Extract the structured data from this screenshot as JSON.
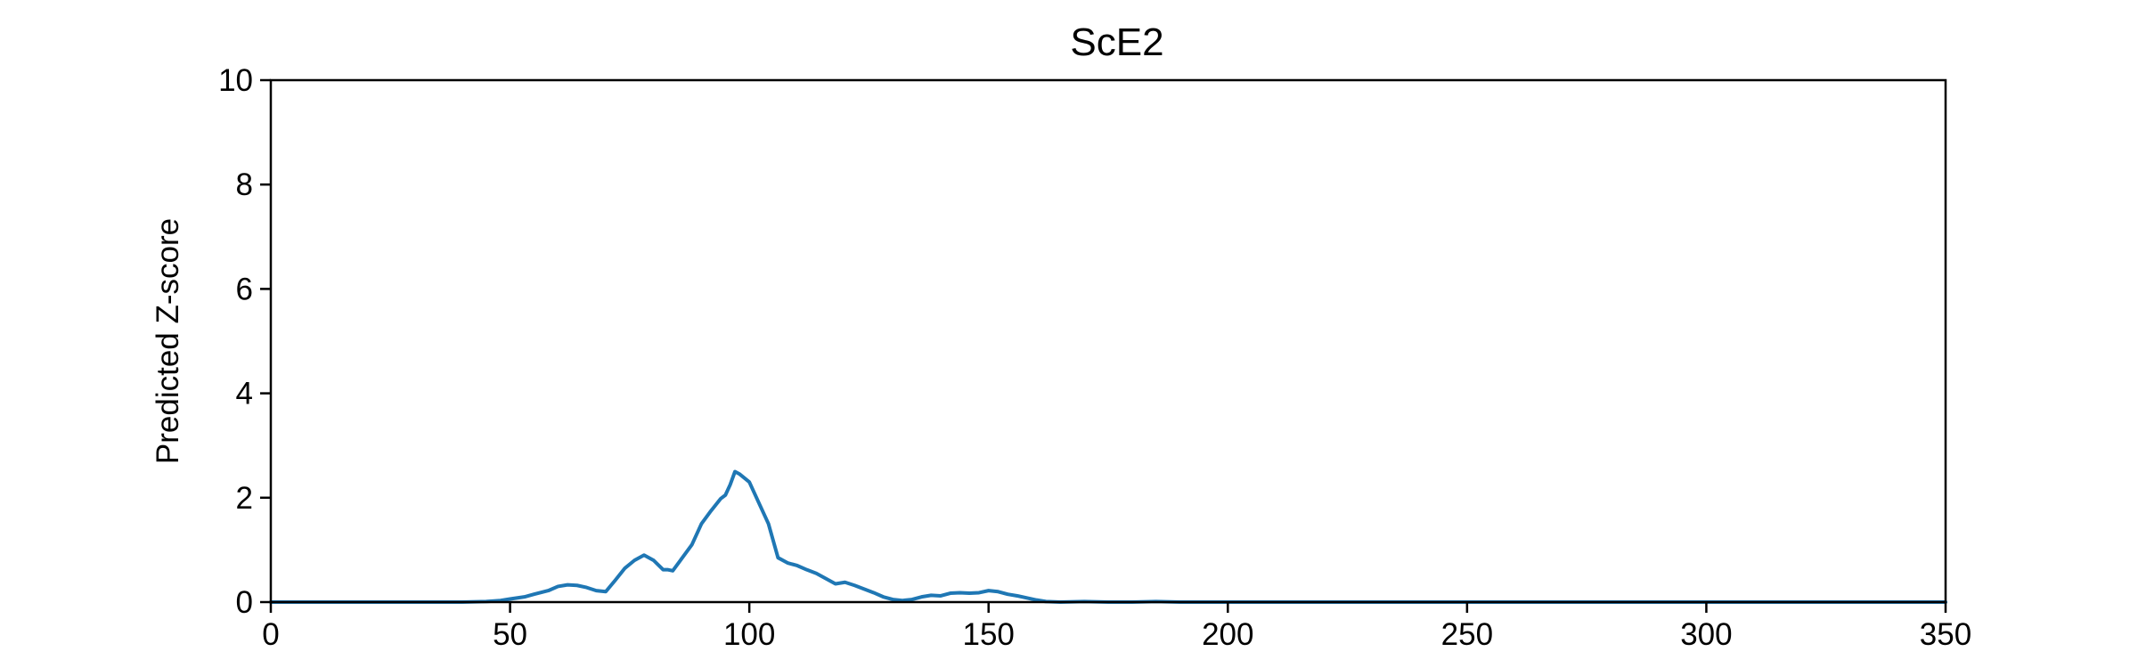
{
  "chart_data": {
    "type": "line",
    "title": "ScE2",
    "xlabel": "",
    "ylabel": "Predicted Z-score",
    "xlim": [
      0,
      350
    ],
    "ylim": [
      0,
      10
    ],
    "xticks": [
      "0",
      "50",
      "100",
      "150",
      "200",
      "250",
      "300",
      "350"
    ],
    "yticks": [
      "0",
      "2",
      "4",
      "6",
      "8",
      "10"
    ],
    "grid": false,
    "series": [
      {
        "color": "#1f77b4",
        "x": [
          0,
          40,
          45,
          48,
          50,
          53,
          55,
          58,
          60,
          62,
          64,
          66,
          68,
          70,
          72,
          74,
          76,
          78,
          80,
          82,
          83,
          84,
          86,
          88,
          90,
          92,
          94,
          95,
          96,
          97,
          98,
          100,
          102,
          104,
          106,
          108,
          110,
          112,
          114,
          116,
          118,
          120,
          122,
          124,
          126,
          128,
          130,
          132,
          134,
          136,
          138,
          140,
          142,
          144,
          146,
          148,
          150,
          152,
          154,
          156,
          158,
          160,
          162,
          165,
          170,
          175,
          180,
          185,
          190,
          200,
          350
        ],
        "y": [
          0,
          0,
          0.01,
          0.03,
          0.06,
          0.1,
          0.15,
          0.22,
          0.3,
          0.33,
          0.32,
          0.28,
          0.22,
          0.2,
          0.42,
          0.65,
          0.8,
          0.9,
          0.8,
          0.62,
          0.62,
          0.6,
          0.85,
          1.1,
          1.5,
          1.75,
          1.98,
          2.05,
          2.25,
          2.5,
          2.45,
          2.3,
          1.9,
          1.5,
          0.85,
          0.75,
          0.7,
          0.62,
          0.55,
          0.45,
          0.35,
          0.38,
          0.32,
          0.25,
          0.18,
          0.1,
          0.05,
          0.03,
          0.05,
          0.1,
          0.13,
          0.12,
          0.17,
          0.18,
          0.17,
          0.18,
          0.22,
          0.2,
          0.15,
          0.12,
          0.08,
          0.04,
          0.01,
          0,
          0.01,
          0,
          0,
          0.01,
          0,
          0,
          0
        ]
      }
    ]
  }
}
